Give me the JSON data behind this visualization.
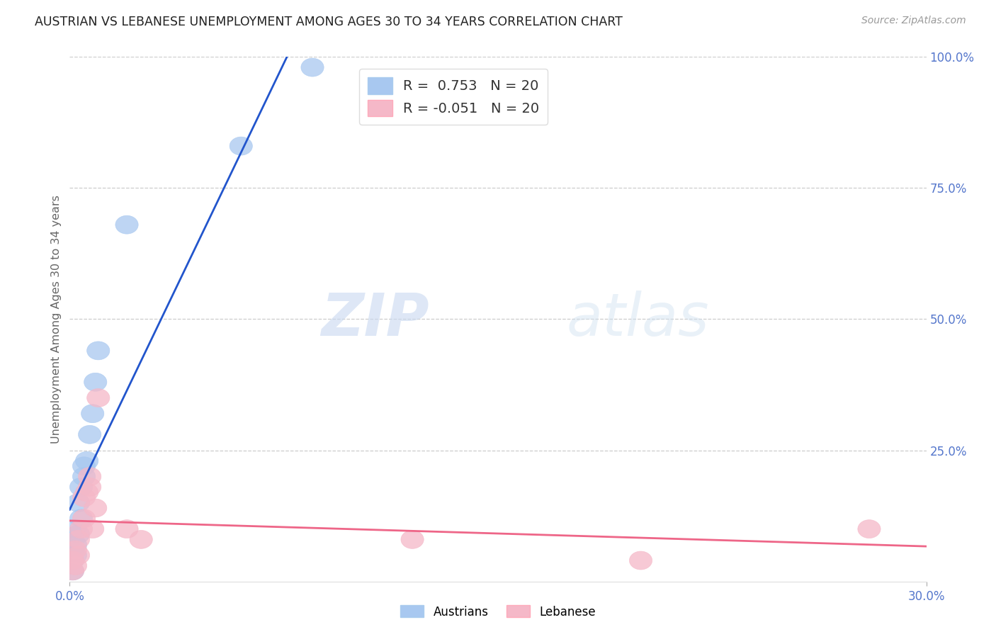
{
  "title": "AUSTRIAN VS LEBANESE UNEMPLOYMENT AMONG AGES 30 TO 34 YEARS CORRELATION CHART",
  "source": "Source: ZipAtlas.com",
  "ylabel": "Unemployment Among Ages 30 to 34 years",
  "austrians_R": 0.753,
  "austrians_N": 20,
  "lebanese_R": -0.051,
  "lebanese_N": 20,
  "austrians_color": "#a8c8f0",
  "lebanese_color": "#f5b8c8",
  "austrians_line_color": "#2255cc",
  "lebanese_line_color": "#ee6688",
  "watermark_zip": "ZIP",
  "watermark_atlas": "atlas",
  "background_color": "#ffffff",
  "title_color": "#222222",
  "axis_color": "#5577cc",
  "austrians_x": [
    0.001,
    0.001,
    0.001,
    0.002,
    0.002,
    0.002,
    0.003,
    0.003,
    0.004,
    0.004,
    0.005,
    0.005,
    0.006,
    0.007,
    0.008,
    0.009,
    0.01,
    0.02,
    0.06,
    0.085
  ],
  "austrians_y": [
    0.02,
    0.04,
    0.06,
    0.05,
    0.07,
    0.1,
    0.09,
    0.15,
    0.12,
    0.18,
    0.2,
    0.22,
    0.23,
    0.28,
    0.32,
    0.38,
    0.44,
    0.68,
    0.83,
    0.98
  ],
  "lebanese_x": [
    0.001,
    0.001,
    0.002,
    0.002,
    0.003,
    0.003,
    0.004,
    0.005,
    0.005,
    0.006,
    0.007,
    0.007,
    0.008,
    0.009,
    0.01,
    0.02,
    0.025,
    0.12,
    0.2,
    0.28
  ],
  "lebanese_y": [
    0.02,
    0.04,
    0.03,
    0.06,
    0.05,
    0.08,
    0.1,
    0.12,
    0.16,
    0.17,
    0.18,
    0.2,
    0.1,
    0.14,
    0.35,
    0.1,
    0.08,
    0.08,
    0.04,
    0.1
  ],
  "xlim": [
    0.0,
    0.3
  ],
  "ylim": [
    0.0,
    1.0
  ],
  "right_ytick_vals": [
    0.25,
    0.5,
    0.75,
    1.0
  ],
  "right_ytick_labels": [
    "25.0%",
    "50.0%",
    "75.0%",
    "100.0%"
  ],
  "gridline_color": "#cccccc",
  "gridline_style": "--",
  "legend_aus_label": "R =  0.753   N = 20",
  "legend_leb_label": "R = -0.051   N = 20"
}
